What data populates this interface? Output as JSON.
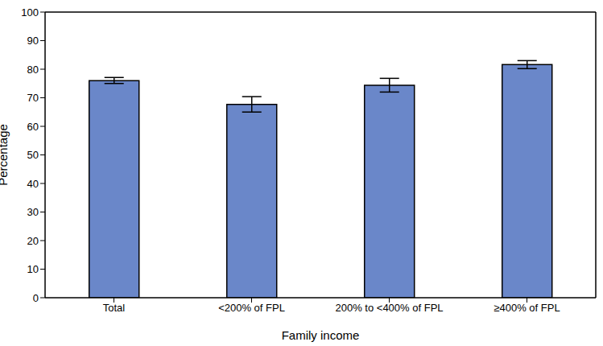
{
  "chart_data": {
    "type": "bar",
    "x_label": "Family income",
    "y_label": "Percentage",
    "categories": [
      "Total",
      "<200% of FPL",
      "200% to <400% of FPL",
      "≥400% of FPL"
    ],
    "values": [
      76.0,
      67.7,
      74.4,
      81.6
    ],
    "ci_low": [
      75.0,
      65.0,
      72.0,
      80.2
    ],
    "ci_high": [
      77.1,
      70.4,
      76.8,
      83.0
    ],
    "color": "#6a87c9",
    "ylim": [
      0,
      100
    ],
    "yticks": [
      0,
      10,
      20,
      30,
      40,
      50,
      60,
      70,
      80,
      90,
      100
    ],
    "grid": false
  }
}
